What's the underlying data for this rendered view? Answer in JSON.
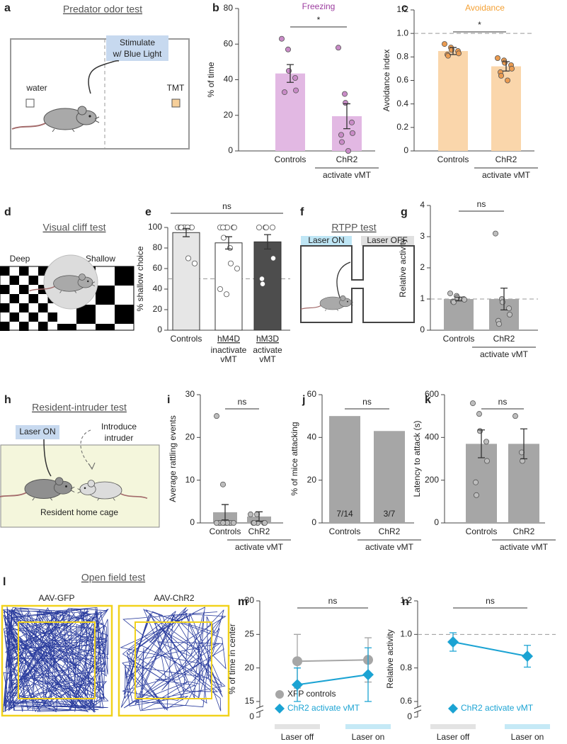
{
  "panels": {
    "a": {
      "letter": "a",
      "title": "Predator odor test",
      "stimulate": [
        "Stimulate",
        "w/ Blue Light"
      ],
      "left": "water",
      "right": "TMT"
    },
    "d": {
      "letter": "d",
      "title": "Visual cliff test",
      "left": "Deep",
      "right": "Shallow"
    },
    "f": {
      "letter": "f",
      "title": "RTPP test",
      "on": "Laser ON",
      "off": "Laser OFF"
    },
    "h": {
      "letter": "h",
      "title": "Resident-intruder test",
      "laser": "Laser ON",
      "intruder": [
        "Introduce",
        "intruder"
      ],
      "cage": "Resident home cage"
    },
    "l": {
      "letter": "l",
      "title": "Open field test",
      "left": "AAV-GFP",
      "right": "AAV-ChR2"
    }
  },
  "chart_data": [
    {
      "type": "bar",
      "letter": "b",
      "title": "Freezing",
      "title_color": "#9c3d9f",
      "ylabel": "% of time",
      "categories": [
        "Controls",
        "ChR2"
      ],
      "category_notes": [
        null,
        "activate vMT"
      ],
      "values": [
        43.5,
        19.5
      ],
      "errors": [
        5,
        7
      ],
      "points": [
        [
          63,
          57,
          45,
          41,
          34,
          33
        ],
        [
          58,
          32,
          27,
          16,
          10,
          9,
          5,
          0
        ]
      ],
      "color": "#e2b8e3",
      "point_color": "#c98bc7",
      "ylim": [
        0,
        80
      ],
      "yticks": [
        0,
        20,
        40,
        60,
        80
      ],
      "significance": "*"
    },
    {
      "type": "bar",
      "letter": "c",
      "title": "Avoidance",
      "title_color": "#f4a033",
      "ylabel": "Avoidance index",
      "categories": [
        "Controls",
        "ChR2"
      ],
      "category_notes": [
        null,
        "activate vMT"
      ],
      "values": [
        0.85,
        0.72
      ],
      "errors": [
        0.03,
        0.04
      ],
      "points": [
        [
          0.91,
          0.88,
          0.86,
          0.85,
          0.83,
          0.82,
          0.81
        ],
        [
          0.79,
          0.77,
          0.75,
          0.73,
          0.7,
          0.67,
          0.64,
          0.6
        ]
      ],
      "color": "#fad6ab",
      "point_color": "#ea9b51",
      "ylim": [
        0,
        1.2
      ],
      "yticks": [
        0,
        0.2,
        0.4,
        0.6,
        0.8,
        {
          "value": 1,
          "label": "1.0"
        },
        1.2
      ],
      "refline": 1,
      "significance": "*"
    },
    {
      "type": "bar",
      "letter": "e",
      "ylabel": "% shallow choice",
      "categories": [
        "Controls",
        "hM4D",
        "hM3D"
      ],
      "category_notes": [
        null,
        [
          "inactivate",
          "vMT"
        ],
        [
          "activate",
          "vMT"
        ]
      ],
      "values": [
        95,
        85,
        86
      ],
      "errors": [
        4,
        6,
        7
      ],
      "points": [
        [
          100,
          100,
          100,
          100,
          100,
          100,
          100,
          100,
          70,
          65
        ],
        [
          100,
          100,
          100,
          100,
          100,
          100,
          90,
          80,
          65,
          60,
          40,
          35
        ],
        [
          100,
          100,
          100,
          100,
          70,
          50,
          45
        ]
      ],
      "colors": [
        "#e6e6e6",
        "#ffffff",
        "#4d4d4d"
      ],
      "point_color": "#ffffff",
      "ylim": [
        0,
        100
      ],
      "yticks": [
        0,
        20,
        40,
        60,
        80,
        100
      ],
      "refline": 50,
      "significance": "ns"
    },
    {
      "type": "bar",
      "letter": "g",
      "ylabel": "Relative activity",
      "categories": [
        "Controls",
        "ChR2"
      ],
      "category_notes": [
        null,
        "activate vMT"
      ],
      "values": [
        1,
        1
      ],
      "errors": [
        0.06,
        0.35
      ],
      "points": [
        [
          1.18,
          1.1,
          1.05,
          1,
          0.98,
          0.92,
          0.9
        ],
        [
          3.1,
          1,
          0.9,
          0.7,
          0.5,
          0.3,
          0.2
        ]
      ],
      "color": "#a6a6a6",
      "point_color": "#bdbdbd",
      "ylim": [
        0,
        4
      ],
      "yticks": [
        0,
        1,
        2,
        3,
        4
      ],
      "refline": 1,
      "significance": "ns"
    },
    {
      "type": "bar",
      "letter": "i",
      "ylabel": "Average rattling events",
      "categories": [
        "Controls",
        "ChR2"
      ],
      "category_notes": [
        null,
        "activate vMT"
      ],
      "values": [
        2.5,
        1.5
      ],
      "errors": [
        1.8,
        1.1
      ],
      "points": [
        [
          25,
          9,
          0,
          0,
          0,
          0,
          0,
          0,
          0,
          0,
          0,
          0
        ],
        [
          2,
          2,
          0,
          0,
          0,
          0,
          0
        ]
      ],
      "color": "#a6a6a6",
      "point_color": "#bdbdbd",
      "ylim": [
        0,
        30
      ],
      "yticks": [
        0,
        10,
        20,
        30
      ],
      "significance": "ns"
    },
    {
      "type": "bar",
      "letter": "j",
      "ylabel": "% of mice attacking",
      "categories": [
        "Controls",
        "ChR2"
      ],
      "category_notes": [
        null,
        "activate vMT"
      ],
      "values": [
        50,
        43
      ],
      "bar_labels": [
        "7/14",
        "3/7"
      ],
      "color": "#a6a6a6",
      "ylim": [
        0,
        60
      ],
      "yticks": [
        0,
        20,
        40,
        60
      ],
      "significance": "ns"
    },
    {
      "type": "bar",
      "letter": "k",
      "ylabel": "Latency to attack (s)",
      "categories": [
        "Controls",
        "ChR2"
      ],
      "category_notes": [
        null,
        "activate vMT"
      ],
      "values": [
        370,
        370
      ],
      "errors": [
        65,
        70
      ],
      "points": [
        [
          560,
          510,
          430,
          380,
          290,
          190,
          130
        ],
        [
          500,
          330,
          290
        ]
      ],
      "color": "#a6a6a6",
      "point_color": "#bdbdbd",
      "ylim": [
        0,
        600
      ],
      "yticks": [
        0,
        200,
        400,
        600
      ],
      "significance": "ns"
    },
    {
      "type": "line",
      "letter": "m",
      "ylabel": "% of time in center",
      "categories": [
        "Laser off",
        "Laser on"
      ],
      "series": [
        {
          "name": "XFP controls",
          "color": "#a6a6a6",
          "marker": "circle",
          "values": [
            21,
            21.2
          ],
          "errors": [
            4,
            3.3
          ]
        },
        {
          "name": "ChR2 activate vMT",
          "color": "#1ba3d3",
          "marker": "diamond",
          "values": [
            17.5,
            19
          ],
          "errors": [
            2.5,
            4
          ]
        }
      ],
      "ylim": [
        0,
        30
      ],
      "yticks": [
        0,
        15,
        20,
        25,
        30
      ],
      "axis_break": true,
      "significance": "ns"
    },
    {
      "type": "line",
      "letter": "n",
      "ylabel": "Relative activity",
      "categories": [
        "Laser off",
        "Laser on"
      ],
      "series": [
        {
          "name": "ChR2 activate vMT",
          "color": "#1ba3d3",
          "marker": "diamond",
          "values": [
            0.955,
            0.87
          ],
          "errors": [
            0.055,
            0.065
          ]
        }
      ],
      "ylim": [
        0,
        1.2
      ],
      "yticks": [
        0,
        0.6,
        0.8,
        {
          "value": 1,
          "label": "1.0"
        },
        1.2
      ],
      "axis_break": true,
      "refline": 1,
      "significance": "ns"
    }
  ]
}
